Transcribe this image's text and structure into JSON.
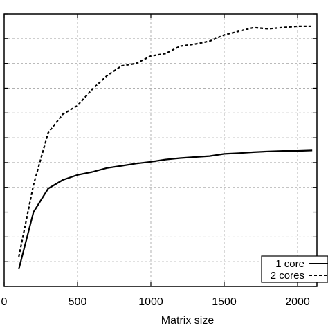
{
  "chart_data": {
    "type": "line",
    "xlabel": "Matrix size",
    "ylabel": "",
    "title": "",
    "xlim": [
      0,
      2100
    ],
    "ylim": [
      0,
      11
    ],
    "xticks": [
      0,
      500,
      1000,
      1500,
      2000
    ],
    "xtick_labels": [
      "0",
      "500",
      "1000",
      "1500",
      "2000"
    ],
    "yticks": [
      0,
      1,
      2,
      3,
      4,
      5,
      6,
      7,
      8,
      9,
      10,
      11
    ],
    "ytick_labels_visible": false,
    "grid": true,
    "legend_position": "bottom-right",
    "series": [
      {
        "name": "1 core",
        "style": "solid",
        "color": "#000000",
        "x": [
          100,
          200,
          300,
          400,
          500,
          600,
          700,
          800,
          900,
          1000,
          1100,
          1200,
          1300,
          1400,
          1500,
          1600,
          1700,
          1800,
          1900,
          2000,
          2100
        ],
        "y": [
          0.7,
          3.0,
          3.95,
          4.3,
          4.5,
          4.62,
          4.78,
          4.87,
          4.96,
          5.03,
          5.12,
          5.18,
          5.22,
          5.26,
          5.35,
          5.38,
          5.42,
          5.45,
          5.47,
          5.47,
          5.49
        ]
      },
      {
        "name": "2 cores",
        "style": "dashed",
        "color": "#000000",
        "x": [
          100,
          200,
          300,
          400,
          500,
          600,
          700,
          800,
          900,
          1000,
          1100,
          1200,
          1300,
          1400,
          1500,
          1600,
          1700,
          1800,
          1900,
          2000,
          2100
        ],
        "y": [
          1.2,
          4.1,
          6.2,
          6.95,
          7.3,
          7.95,
          8.5,
          8.9,
          9.0,
          9.3,
          9.4,
          9.7,
          9.78,
          9.9,
          10.15,
          10.3,
          10.45,
          10.4,
          10.45,
          10.5,
          10.5
        ]
      }
    ]
  }
}
